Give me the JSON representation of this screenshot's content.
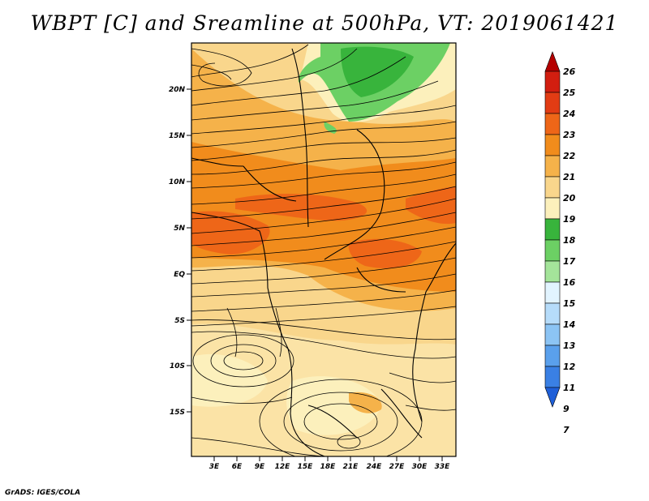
{
  "title": "WBPT [C] and Sreamline at 500hPa, VT: 2019061421",
  "credit": "GrADS: IGES/COLA",
  "map": {
    "lat_labels": [
      "20N",
      "15N",
      "10N",
      "5N",
      "EQ",
      "5S",
      "10S",
      "15S"
    ],
    "lon_labels": [
      "3E",
      "6E",
      "9E",
      "12E",
      "15E",
      "18E",
      "21E",
      "24E",
      "27E",
      "30E",
      "33E"
    ]
  },
  "colorbar": {
    "labels": [
      "26",
      "25",
      "24",
      "23",
      "22",
      "21",
      "20",
      "19",
      "18",
      "17",
      "16",
      "15",
      "14",
      "13",
      "12",
      "11",
      "9",
      "7"
    ],
    "colors": [
      "#b40000",
      "#d21e10",
      "#e23c14",
      "#ee6618",
      "#f18c1c",
      "#f5b24a",
      "#f9d68c",
      "#fcf0bc",
      "#38b43c",
      "#6cd064",
      "#a4e49a",
      "#e2f4ff",
      "#b6dcfa",
      "#8cc4f4",
      "#5aa0ec",
      "#3a80e4",
      "#1f5fd8"
    ]
  }
}
